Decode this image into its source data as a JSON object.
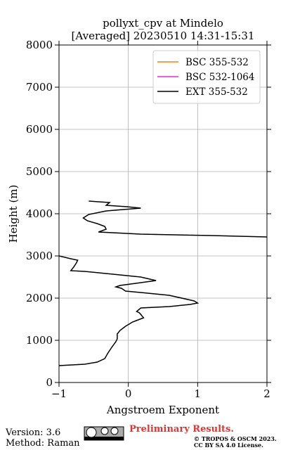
{
  "chart_data": {
    "type": "profile",
    "title": "pollyxt_cpv at Mindelo",
    "subtitle": "[Averaged] 20230510 14:31-15:31",
    "x_label": "Angstroem Exponent",
    "y_label": "Height (m)",
    "xlim": [
      -1,
      2
    ],
    "xticks": [
      {
        "value": -1,
        "label": "−1"
      },
      0,
      1,
      2
    ],
    "ylim": [
      0,
      8000
    ],
    "yticks": [
      0,
      1000,
      2000,
      3000,
      4000,
      5000,
      6000,
      7000,
      8000
    ],
    "grid": true,
    "legend": "upper right",
    "heights": [
      400,
      433,
      483,
      567,
      683,
      833,
      967,
      1033,
      1150,
      1233,
      1333,
      1433,
      1483,
      1533,
      1650,
      1683,
      1767,
      1800,
      1850,
      1883,
      1933,
      2067,
      2133,
      2167,
      2233,
      2267,
      2300,
      2367,
      2417,
      2500,
      2567,
      2633,
      2650,
      2733,
      2833,
      2900,
      2933,
      3000,
      3200,
      3450,
      3483,
      3517,
      3550,
      3567,
      3633,
      3700,
      3767,
      3833,
      3900,
      3983,
      4067,
      4133,
      4167,
      4200,
      4267,
      4283,
      4300
    ],
    "series": [
      {
        "name": "BSC 355-532",
        "color": "#ff7f0e"
      },
      {
        "name": "BSC 532-1064",
        "color": "#ee22ee"
      },
      {
        "name": "EXT 355-532",
        "color": "#000000",
        "values": [
          -1.0,
          -0.63,
          -0.45,
          -0.34,
          -0.3,
          -0.24,
          -0.18,
          -0.16,
          -0.16,
          -0.12,
          -0.04,
          0.06,
          0.14,
          0.22,
          0.16,
          0.12,
          0.18,
          0.59,
          0.89,
          1.0,
          0.95,
          0.59,
          0.18,
          -0.04,
          -0.1,
          -0.18,
          -0.12,
          0.18,
          0.4,
          0.18,
          -0.22,
          -0.63,
          -0.83,
          -0.79,
          -0.75,
          -0.73,
          -0.83,
          -1.0,
          null,
          2.0,
          1.2,
          0.18,
          -0.22,
          -0.43,
          -0.32,
          -0.34,
          -0.45,
          -0.59,
          -0.65,
          -0.57,
          -0.32,
          0.18,
          -0.02,
          -0.32,
          -0.27,
          -0.43,
          -0.57
        ]
      }
    ]
  },
  "footer": {
    "version": "Version: 3.6",
    "method": "Method: Raman",
    "notice": "Preliminary Results.",
    "copyright": "© TROPOS & OSCM 2023.",
    "license": "CC BY SA 4.0 License."
  }
}
